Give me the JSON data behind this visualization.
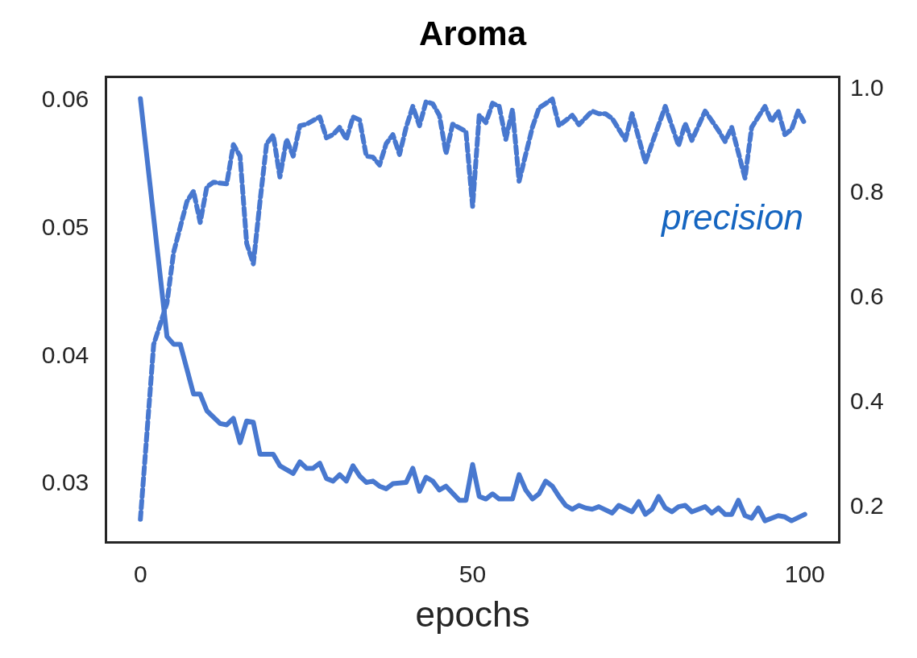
{
  "chart_data": {
    "type": "line",
    "title": "Aroma",
    "xlabel": "epochs",
    "xlim": [
      -5,
      105
    ],
    "xticks": [
      0,
      50,
      100
    ],
    "ylim": [
      0.0254,
      0.0616
    ],
    "yticks": [
      0.03,
      0.04,
      0.05,
      0.06
    ],
    "y2lim": [
      0.132,
      1.017
    ],
    "y2ticks": [
      0.2,
      0.4,
      0.6,
      0.8,
      {
        "value": 1.0,
        "label": "1.0"
      }
    ],
    "series": [
      {
        "color": "#4878cf",
        "line_style": "solid",
        "axis": "y",
        "x": [
          0,
          4,
          5,
          6,
          8,
          9,
          10,
          12,
          13,
          14,
          15,
          16,
          17,
          18,
          20,
          21,
          23,
          24,
          25,
          26,
          27,
          28,
          29,
          30,
          31,
          32,
          33,
          34,
          35,
          36,
          37,
          38,
          40,
          41,
          42,
          43,
          44,
          45,
          46,
          48,
          49,
          50,
          51,
          52,
          53,
          54,
          56,
          57,
          58,
          59,
          60,
          61,
          62,
          63,
          64,
          65,
          66,
          67,
          68,
          69,
          71,
          72,
          74,
          75,
          76,
          77,
          78,
          79,
          80,
          81,
          82,
          83,
          85,
          86,
          87,
          88,
          89,
          90,
          91,
          92,
          93,
          94,
          96,
          97,
          98,
          100
        ],
        "values": [
          0.06,
          0.0414,
          0.0408,
          0.0408,
          0.0369,
          0.0369,
          0.0356,
          0.0346,
          0.0345,
          0.035,
          0.0331,
          0.0348,
          0.0347,
          0.0322,
          0.0322,
          0.0313,
          0.0307,
          0.0316,
          0.0311,
          0.0311,
          0.0315,
          0.0303,
          0.0301,
          0.0306,
          0.0301,
          0.0313,
          0.0305,
          0.03,
          0.0301,
          0.0297,
          0.0295,
          0.0299,
          0.03,
          0.0311,
          0.0293,
          0.0304,
          0.0301,
          0.0294,
          0.0297,
          0.0286,
          0.0286,
          0.0314,
          0.0289,
          0.0287,
          0.0291,
          0.0287,
          0.0287,
          0.0306,
          0.0294,
          0.0287,
          0.0291,
          0.0301,
          0.0297,
          0.0289,
          0.0282,
          0.0279,
          0.0282,
          0.028,
          0.0279,
          0.0281,
          0.0276,
          0.0282,
          0.0277,
          0.0285,
          0.0275,
          0.0279,
          0.0289,
          0.028,
          0.0277,
          0.0281,
          0.0282,
          0.0277,
          0.0281,
          0.0276,
          0.028,
          0.0275,
          0.0275,
          0.0286,
          0.0274,
          0.0272,
          0.028,
          0.027,
          0.0274,
          0.0273,
          0.027,
          0.0275
        ]
      },
      {
        "name": "precision",
        "color": "#4878cf",
        "line_style": "dashed",
        "axis": "y2",
        "x": [
          0,
          2,
          4,
          5,
          7,
          8,
          9,
          10,
          11,
          13,
          14,
          15,
          16,
          17,
          18,
          19,
          20,
          21,
          22,
          23,
          24,
          25,
          27,
          28,
          29,
          30,
          31,
          32,
          33,
          34,
          35,
          36,
          37,
          38,
          39,
          40,
          41,
          42,
          43,
          44,
          45,
          46,
          47,
          49,
          50,
          51,
          52,
          53,
          54,
          55,
          56,
          57,
          59,
          60,
          62,
          63,
          65,
          66,
          68,
          69,
          70,
          71,
          73,
          74,
          76,
          77,
          79,
          81,
          82,
          83,
          85,
          87,
          88,
          89,
          91,
          92,
          94,
          95,
          96,
          97,
          98,
          99,
          100
        ],
        "values": [
          0.174,
          0.508,
          0.587,
          0.684,
          0.781,
          0.801,
          0.741,
          0.809,
          0.818,
          0.815,
          0.89,
          0.868,
          0.701,
          0.662,
          0.781,
          0.892,
          0.908,
          0.828,
          0.9,
          0.868,
          0.926,
          0.929,
          0.943,
          0.903,
          0.909,
          0.923,
          0.9,
          0.943,
          0.937,
          0.868,
          0.866,
          0.851,
          0.892,
          0.909,
          0.871,
          0.923,
          0.963,
          0.926,
          0.972,
          0.968,
          0.946,
          0.873,
          0.929,
          0.915,
          0.772,
          0.946,
          0.932,
          0.969,
          0.963,
          0.9,
          0.957,
          0.82,
          0.923,
          0.96,
          0.977,
          0.926,
          0.946,
          0.928,
          0.954,
          0.949,
          0.949,
          0.94,
          0.899,
          0.949,
          0.856,
          0.892,
          0.963,
          0.888,
          0.93,
          0.898,
          0.954,
          0.917,
          0.896,
          0.923,
          0.826,
          0.923,
          0.963,
          0.934,
          0.954,
          0.909,
          0.919,
          0.954,
          0.93
        ]
      }
    ]
  }
}
